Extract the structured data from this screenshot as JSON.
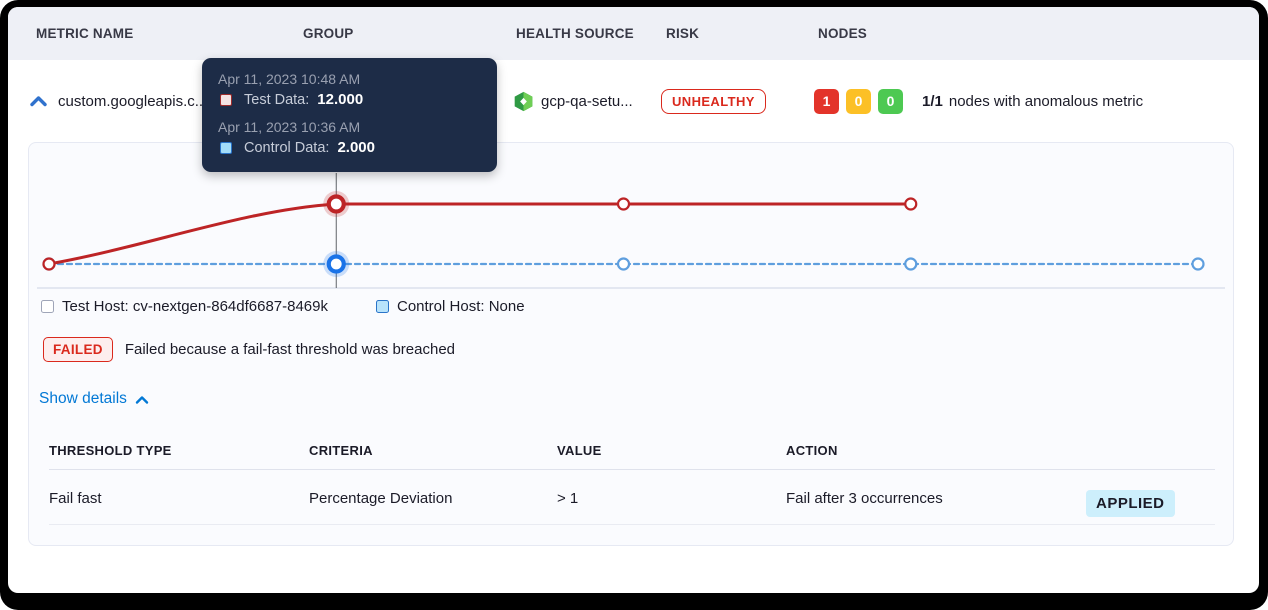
{
  "table_header": {
    "metric_name": "METRIC NAME",
    "group": "GROUP",
    "health_source": "HEALTH SOURCE",
    "risk": "RISK",
    "nodes": "NODES"
  },
  "metric_row": {
    "metric_name": "custom.googleapis.c...",
    "health_source_name": "gcp-qa-setu...",
    "risk_label": "UNHEALTHY",
    "nodes": {
      "anomalous_count": "1",
      "warning_count": "0",
      "healthy_count": "0",
      "summary_bold": "1/1",
      "summary_text": "nodes with anomalous metric"
    }
  },
  "tooltip": {
    "test_timestamp": "Apr 11, 2023 10:48 AM",
    "test_label": "Test Data:",
    "test_value": "12.000",
    "control_timestamp": "Apr 11, 2023 10:36 AM",
    "control_label": "Control Data:",
    "control_value": "2.000"
  },
  "chart_data": {
    "type": "line",
    "series": [
      {
        "name": "Test Data",
        "values": [
          2,
          12,
          12,
          12
        ],
        "style": "solid",
        "color_key": "test_line",
        "hover_color_key": "test_line"
      },
      {
        "name": "Control Data",
        "values": [
          2,
          2,
          2,
          2,
          2
        ],
        "style": "dashed",
        "color_key": "control_line",
        "hover_color_key": "control_hover"
      }
    ],
    "hover_index": 1,
    "hover_values": {
      "test": 12.0,
      "control": 2.0
    },
    "ylim": [
      0,
      14
    ],
    "grid": false,
    "legend_position": "bottom"
  },
  "legend": {
    "test_host": "Test Host: cv-nextgen-864df6687-8469k",
    "control_host": "Control Host: None"
  },
  "status": {
    "badge": "FAILED",
    "message": "Failed because a fail-fast threshold was breached"
  },
  "details_toggle_label": "Show details",
  "details_table": {
    "headers": [
      "THRESHOLD TYPE",
      "CRITERIA",
      "VALUE",
      "ACTION"
    ],
    "rows": [
      {
        "threshold_type": "Fail fast",
        "criteria": "Percentage Deviation",
        "value": "> 1",
        "action": "Fail after 3 occurrences",
        "action_badge": "APPLIED"
      }
    ]
  },
  "colors": {
    "test_line": "#bd2426",
    "control_line": "#5e9ede",
    "control_hover": "#1a73e8",
    "risk_red": "#da291d",
    "node_red": "#e3342a",
    "node_yellow": "#fcc026",
    "node_green": "#4dc952",
    "link_blue": "#0278d5",
    "tooltip_bg": "#1d2c47",
    "header_band_bg": "#eef0f6",
    "applied_bg": "#cdeffc"
  }
}
